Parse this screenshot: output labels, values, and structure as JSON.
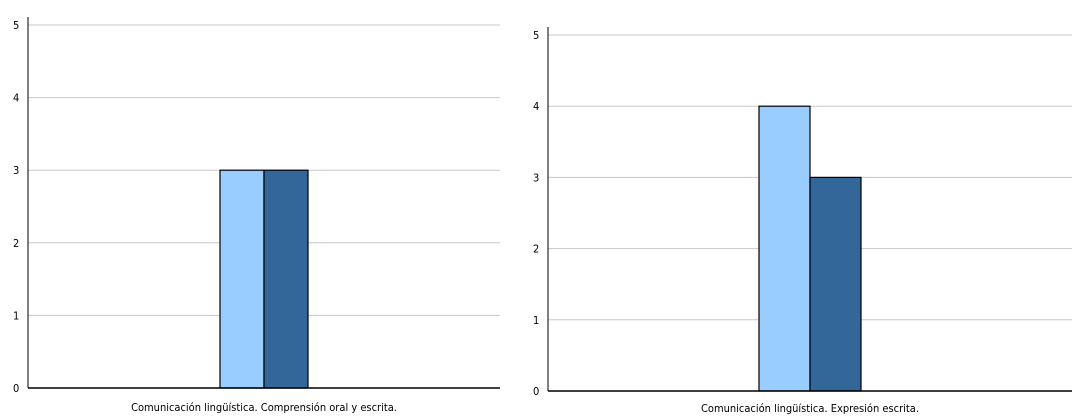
{
  "chart_data": [
    {
      "type": "bar",
      "categories": [
        "Comunicación lingüística. Comprensión oral y escrita."
      ],
      "series": [
        {
          "values": [
            3
          ],
          "color": "#99ccff"
        },
        {
          "values": [
            3
          ],
          "color": "#336699"
        }
      ],
      "ylim": [
        0,
        5
      ],
      "yticks": [
        0,
        1,
        2,
        3,
        4,
        5
      ],
      "grid": true,
      "xlabel": "",
      "ylabel": ""
    },
    {
      "type": "bar",
      "categories": [
        "Comunicación lingüística. Expresión escrita."
      ],
      "series": [
        {
          "values": [
            4
          ],
          "color": "#99ccff"
        },
        {
          "values": [
            3
          ],
          "color": "#336699"
        }
      ],
      "ylim": [
        0,
        5
      ],
      "yticks": [
        0,
        1,
        2,
        3,
        4,
        5
      ],
      "grid": true,
      "xlabel": "",
      "ylabel": ""
    }
  ],
  "colors": {
    "gridline": "#c8c8c8",
    "axis": "#000000"
  }
}
